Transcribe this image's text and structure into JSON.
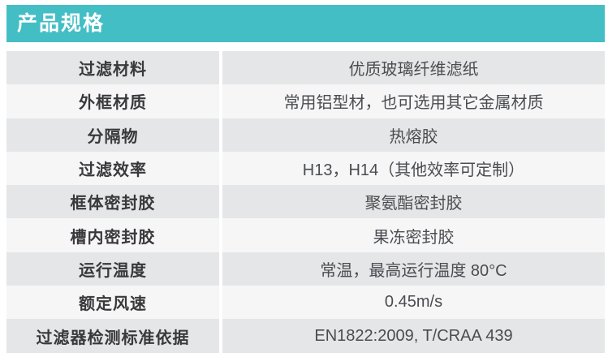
{
  "header": {
    "title": "产品规格"
  },
  "colors": {
    "accent": "#44bec5",
    "row_odd": "#e5e6e8",
    "row_even": "#f6f6f7",
    "label_text": "#39393b",
    "value_text": "#4b4c50",
    "title_text": "#ffffff"
  },
  "table": {
    "rows": [
      {
        "label": "过滤材料",
        "value": "优质玻璃纤维滤纸"
      },
      {
        "label": "外框材质",
        "value": "常用铝型材，也可选用其它金属材质"
      },
      {
        "label": "分隔物",
        "value": "热熔胶"
      },
      {
        "label": "过滤效率",
        "value": "H13，H14（其他效率可定制）"
      },
      {
        "label": "框体密封胶",
        "value": "聚氨酯密封胶"
      },
      {
        "label": "槽内密封胶",
        "value": "果冻密封胶"
      },
      {
        "label": "运行温度",
        "value": "常温，最高运行温度 80°C"
      },
      {
        "label": "额定风速",
        "value": "0.45m/s"
      },
      {
        "label": "过滤器检测标准依据",
        "value": "EN1822:2009, T/CRAA 439"
      }
    ]
  }
}
